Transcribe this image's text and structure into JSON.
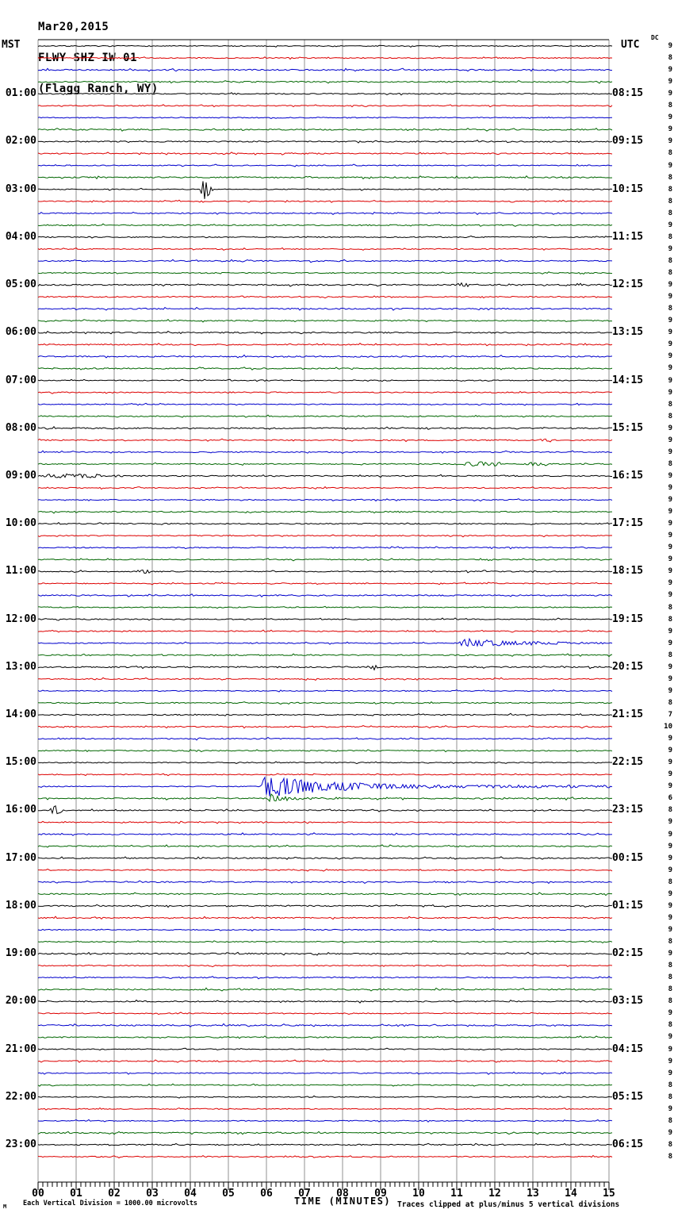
{
  "header": {
    "date": "Mar20,2015",
    "station": "FLWY SHZ IW 01",
    "location": "(Flagg Ranch, WY)"
  },
  "left_axis": {
    "timezone": "MST",
    "labels": [
      {
        "text": "01:00",
        "line": 4
      },
      {
        "text": "02:00",
        "line": 8
      },
      {
        "text": "03:00",
        "line": 12
      },
      {
        "text": "04:00",
        "line": 16
      },
      {
        "text": "05:00",
        "line": 20
      },
      {
        "text": "06:00",
        "line": 24
      },
      {
        "text": "07:00",
        "line": 28
      },
      {
        "text": "08:00",
        "line": 32
      },
      {
        "text": "09:00",
        "line": 36
      },
      {
        "text": "10:00",
        "line": 40
      },
      {
        "text": "11:00",
        "line": 44
      },
      {
        "text": "12:00",
        "line": 48
      },
      {
        "text": "13:00",
        "line": 52
      },
      {
        "text": "14:00",
        "line": 56
      },
      {
        "text": "15:00",
        "line": 60
      },
      {
        "text": "16:00",
        "line": 64
      },
      {
        "text": "17:00",
        "line": 68
      },
      {
        "text": "18:00",
        "line": 72
      },
      {
        "text": "19:00",
        "line": 76
      },
      {
        "text": "20:00",
        "line": 80
      },
      {
        "text": "21:00",
        "line": 84
      },
      {
        "text": "22:00",
        "line": 88
      },
      {
        "text": "23:00",
        "line": 92
      }
    ]
  },
  "right_axis": {
    "timezone": "UTC",
    "dc_header": "DC",
    "labels": [
      {
        "text": "08:15",
        "line": 4
      },
      {
        "text": "09:15",
        "line": 8
      },
      {
        "text": "10:15",
        "line": 12
      },
      {
        "text": "11:15",
        "line": 16
      },
      {
        "text": "12:15",
        "line": 20
      },
      {
        "text": "13:15",
        "line": 24
      },
      {
        "text": "14:15",
        "line": 28
      },
      {
        "text": "15:15",
        "line": 32
      },
      {
        "text": "16:15",
        "line": 36
      },
      {
        "text": "17:15",
        "line": 40
      },
      {
        "text": "18:15",
        "line": 44
      },
      {
        "text": "19:15",
        "line": 48
      },
      {
        "text": "20:15",
        "line": 52
      },
      {
        "text": "21:15",
        "line": 56
      },
      {
        "text": "22:15",
        "line": 60
      },
      {
        "text": "23:15",
        "line": 64
      },
      {
        "text": "00:15",
        "line": 68
      },
      {
        "text": "01:15",
        "line": 72
      },
      {
        "text": "02:15",
        "line": 76
      },
      {
        "text": "03:15",
        "line": 80
      },
      {
        "text": "04:15",
        "line": 84
      },
      {
        "text": "05:15",
        "line": 88
      },
      {
        "text": "06:15",
        "line": 92
      }
    ],
    "dc_values": [
      9,
      8,
      9,
      9,
      9,
      8,
      9,
      9,
      9,
      8,
      9,
      8,
      8,
      8,
      8,
      9,
      8,
      9,
      8,
      8,
      9,
      9,
      8,
      9,
      9,
      9,
      9,
      9,
      9,
      9,
      8,
      8,
      9,
      9,
      9,
      8,
      9,
      9,
      9,
      9,
      9,
      9,
      9,
      9,
      9,
      9,
      9,
      8,
      8,
      9,
      9,
      8,
      9,
      9,
      9,
      8,
      7,
      10,
      9,
      9,
      9,
      9,
      9,
      6,
      8,
      9,
      9,
      9,
      9,
      9,
      8,
      9,
      9,
      9,
      9,
      8,
      9,
      8,
      8,
      8,
      8,
      9,
      8,
      9,
      9,
      9,
      9,
      8,
      8,
      9,
      8,
      9,
      8,
      8
    ]
  },
  "x_axis": {
    "title": "TIME (MINUTES)",
    "tick_labels": [
      "00",
      "01",
      "02",
      "03",
      "04",
      "05",
      "06",
      "07",
      "08",
      "09",
      "10",
      "11",
      "12",
      "13",
      "14",
      "15"
    ]
  },
  "footer": {
    "corner_mark": "M",
    "scale_note": "Each Vertical Division = 1000.00 microvolts",
    "clip_note": "Traces clipped at plus/minus 5 vertical divisions"
  },
  "chart_data": {
    "type": "line",
    "title": "FLWY SHZ IW 01 (Flagg Ranch, WY) helicorder, Mar20,2015",
    "xlabel": "TIME (MINUTES)",
    "x_range_minutes": [
      0,
      15
    ],
    "minutes_per_line": 15,
    "num_lines": 94,
    "first_line_start_mst": "00:00",
    "last_line_start_mst": "23:15",
    "utc_offset_hours": 7,
    "trace_color_cycle": [
      "#000000",
      "#dd0000",
      "#0000cc",
      "#006600"
    ],
    "grid_color": "#909090",
    "axis_color": "#000000",
    "clip_divisions": 5,
    "microvolts_per_division": 1000.0,
    "events": [
      {
        "line": 12,
        "start": 4.25,
        "end": 4.6,
        "amp": 22,
        "shape": "spike",
        "note": "large spike 03:00 MST row at ~4.4 min"
      },
      {
        "line": 20,
        "start": 11.0,
        "end": 11.3,
        "amp": 2.2,
        "shape": "burst"
      },
      {
        "line": 33,
        "start": 13.2,
        "end": 13.6,
        "amp": 1.6,
        "shape": "burst"
      },
      {
        "line": 35,
        "start": 11.2,
        "end": 12.2,
        "amp": 2.4,
        "shape": "burst"
      },
      {
        "line": 35,
        "start": 12.8,
        "end": 13.4,
        "amp": 1.8,
        "shape": "burst"
      },
      {
        "line": 36,
        "start": 0.15,
        "end": 1.7,
        "amp": 2.2,
        "shape": "burst"
      },
      {
        "line": 36,
        "start": 2.0,
        "end": 2.25,
        "amp": 1.6,
        "shape": "burst"
      },
      {
        "line": 44,
        "start": 2.6,
        "end": 2.95,
        "amp": 1.8,
        "shape": "burst"
      },
      {
        "line": 50,
        "start": 11.05,
        "end": 15,
        "amp": 5,
        "shape": "quake",
        "tau": 1.8,
        "note": "12:30 MST blue row activity"
      },
      {
        "line": 52,
        "start": 8.65,
        "end": 8.95,
        "amp": 4.5,
        "shape": "spike"
      },
      {
        "line": 62,
        "start": 5.85,
        "end": 15,
        "amp": 14,
        "shape": "quake",
        "tau": 2.2,
        "note": "15:30 MST blue row event with coda"
      },
      {
        "line": 63,
        "start": 6.0,
        "end": 8.2,
        "amp": 5,
        "shape": "quake",
        "tau": 0.6
      },
      {
        "line": 64,
        "start": 0.25,
        "end": 0.7,
        "amp": 6,
        "shape": "spike"
      }
    ]
  }
}
